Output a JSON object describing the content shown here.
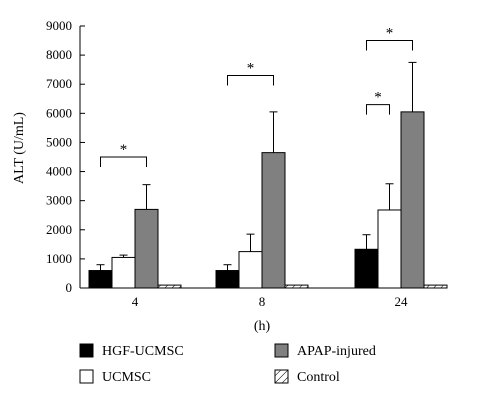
{
  "chart_data": {
    "type": "bar",
    "ylabel": "ALT (U/mL)",
    "xlabel": "(h)",
    "ylim": [
      0,
      9000
    ],
    "yticks": [
      0,
      1000,
      2000,
      3000,
      4000,
      5000,
      6000,
      7000,
      8000,
      9000
    ],
    "categories": [
      "4",
      "8",
      "24"
    ],
    "series": [
      {
        "name": "HGF-UCMSC",
        "values": [
          600,
          600,
          1330
        ],
        "errors": [
          200,
          200,
          500
        ],
        "fill": "#000000"
      },
      {
        "name": "UCMSC",
        "values": [
          1050,
          1250,
          2680
        ],
        "errors": [
          80,
          600,
          900
        ],
        "fill": "#ffffff"
      },
      {
        "name": "APAP-injured",
        "values": [
          2700,
          4650,
          6050
        ],
        "errors": [
          850,
          1400,
          1700
        ],
        "fill": "#808080"
      },
      {
        "name": "Control",
        "values": [
          100,
          100,
          100
        ],
        "errors": [
          0,
          0,
          0
        ],
        "fill": "hatch"
      }
    ],
    "significance": [
      {
        "category": "4",
        "from": "HGF-UCMSC",
        "to": "APAP-injured",
        "level": 4500,
        "label": "*"
      },
      {
        "category": "8",
        "from": "HGF-UCMSC",
        "to": "APAP-injured",
        "level": 7300,
        "label": "*"
      },
      {
        "category": "24",
        "from": "HGF-UCMSC",
        "to": "UCMSC",
        "level": 6300,
        "label": "*"
      },
      {
        "category": "24",
        "from": "HGF-UCMSC",
        "to": "APAP-injured",
        "level": 8500,
        "label": "*"
      }
    ],
    "legend_position": "bottom",
    "grid": false
  }
}
